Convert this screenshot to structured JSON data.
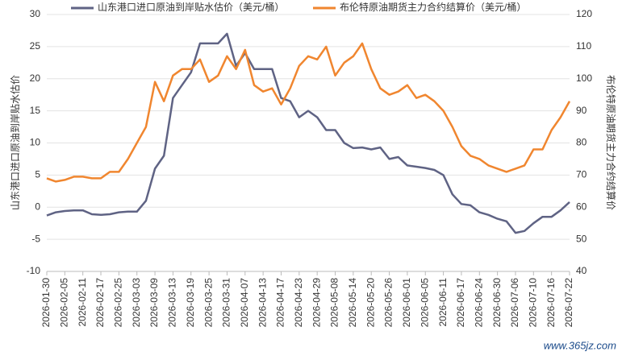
{
  "chart_data": {
    "type": "line",
    "categories": [
      "2026-01-30",
      null,
      "2026-02-05",
      null,
      "2026-02-11",
      null,
      "2026-02-17",
      null,
      "2026-02-25",
      null,
      "2026-03-03",
      null,
      "2026-03-09",
      null,
      "2026-03-13",
      null,
      "2026-03-19",
      null,
      "2026-03-25",
      null,
      "2026-03-31",
      null,
      "2026-04-07",
      null,
      "2026-04-13",
      null,
      "2026-04-17",
      null,
      "2026-04-23",
      null,
      "2026-04-29",
      null,
      "2026-05-08",
      null,
      "2026-05-14",
      null,
      "2026-05-20",
      null,
      "2026-05-26",
      null,
      "2026-06-01",
      null,
      "2026-06-05",
      null,
      "2026-06-11",
      null,
      "2026-06-17",
      null,
      "2026-06-24",
      null,
      "2026-06-30",
      null,
      "2026-07-06",
      null,
      "2026-07-10",
      null,
      "2026-07-16",
      null,
      "2026-07-22"
    ],
    "series": [
      {
        "name": "山东港口进口原油到岸贴水估价（美元/桶）",
        "color": "#5f6384",
        "axis": "y",
        "values": [
          -1.3,
          -0.8,
          -0.6,
          -0.5,
          -0.5,
          -1.1,
          -1.2,
          -1.1,
          -0.8,
          -0.7,
          -0.7,
          1.0,
          6,
          8,
          17,
          19,
          21,
          25.5,
          25.5,
          25.5,
          27,
          22,
          24,
          21.5,
          21.5,
          21.5,
          17,
          16.5,
          14,
          15,
          14,
          12,
          12,
          10,
          9.2,
          9.3,
          9,
          9.3,
          7.5,
          7.8,
          6.5,
          6.3,
          6.1,
          5.8,
          5,
          2,
          0.5,
          0.3,
          -0.8,
          -1.2,
          -1.8,
          -2.2,
          -4,
          -3.7,
          -2.5,
          -1.5,
          -1.5,
          -0.5,
          0.8
        ]
      },
      {
        "name": "布伦特原油期货主力合约结算价（美元/桶）",
        "color": "#f0862f",
        "axis": "y2",
        "values": [
          69,
          68,
          68.5,
          69.5,
          69.5,
          69,
          69,
          71,
          71,
          75,
          80,
          85,
          99,
          93,
          101,
          103,
          103,
          106,
          99,
          101,
          107,
          103,
          109,
          98,
          96,
          97,
          92,
          97,
          104,
          107,
          106,
          110,
          101,
          105,
          107,
          111,
          103,
          97,
          95,
          96,
          98,
          94,
          95,
          93,
          90,
          85,
          79,
          76,
          75,
          73,
          72,
          71,
          72,
          73,
          78,
          78,
          84,
          88,
          93
        ]
      }
    ],
    "ylabel": "山东港口进口原油到岸贴水估价",
    "y2label": "布伦特原油期货主力合约结算价",
    "ylim": [
      -10,
      30
    ],
    "yticks": [
      -10,
      -5,
      0,
      5,
      10,
      15,
      20,
      25,
      30
    ],
    "y2lim": [
      40,
      120
    ],
    "y2ticks": [
      40,
      50,
      60,
      70,
      80,
      90,
      100,
      110,
      120
    ],
    "grid": true,
    "legend": "top",
    "watermark": "www.365jz.com"
  }
}
